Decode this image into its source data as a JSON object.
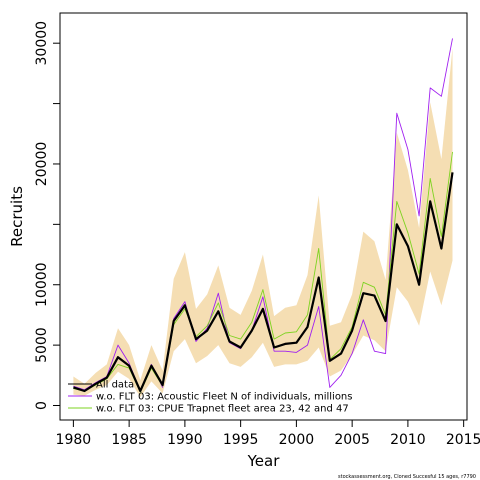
{
  "chart_data": {
    "type": "line",
    "xlabel": "Year",
    "ylabel": "Recruits",
    "xlim": [
      1978.8,
      2015.3
    ],
    "ylim": [
      -1200,
      32500
    ],
    "x_ticks": [
      1980,
      1985,
      1990,
      1995,
      2000,
      2005,
      2010,
      2015
    ],
    "y_ticks": [
      0,
      5000,
      10000,
      15000,
      20000,
      25000,
      30000
    ],
    "y_tick_labels": [
      "0",
      "5000",
      "10000",
      "",
      "20000",
      "",
      "30000"
    ],
    "grid": false,
    "legend_position": "bottom-left",
    "x": [
      1980,
      1981,
      1982,
      1983,
      1984,
      1985,
      1986,
      1987,
      1988,
      1989,
      1990,
      1991,
      1992,
      1993,
      1994,
      1995,
      1996,
      1997,
      1998,
      1999,
      2000,
      2001,
      2002,
      2003,
      2004,
      2005,
      2006,
      2007,
      2008,
      2009,
      2010,
      2011,
      2012,
      2013,
      2014
    ],
    "series": [
      {
        "name": "All data",
        "color": "#000000",
        "values": [
          1500,
          1200,
          1800,
          2300,
          4000,
          3300,
          1200,
          3300,
          1700,
          7000,
          8300,
          5500,
          6200,
          7800,
          5300,
          4800,
          6200,
          8000,
          4800,
          5100,
          5200,
          6500,
          10600,
          3700,
          4300,
          6200,
          9300,
          9100,
          7000,
          15000,
          13200,
          10000,
          16900,
          13000,
          19300
        ]
      },
      {
        "name": "w.o. FLT 03: Acoustic Fleet   N of individuals, millions",
        "color": "#a020f0",
        "values": [
          1600,
          1300,
          1900,
          2400,
          5000,
          3500,
          1200,
          3400,
          1500,
          7200,
          8600,
          5300,
          6400,
          9300,
          5200,
          4700,
          6200,
          9000,
          4500,
          4500,
          4400,
          5000,
          8200,
          1500,
          2500,
          4300,
          7100,
          4500,
          4300,
          24200,
          21200,
          15700,
          26300,
          25600,
          30400
        ]
      },
      {
        "name": "w.o. FLT 03: CPUE Trapnet fleet area 23, 42 and 47",
        "color": "#7ed321",
        "values": [
          1400,
          1200,
          1700,
          2200,
          3400,
          3100,
          1100,
          3100,
          1600,
          6700,
          8000,
          5700,
          6600,
          8500,
          5800,
          5500,
          6900,
          9600,
          5500,
          6000,
          6100,
          7500,
          13000,
          3800,
          4700,
          6500,
          10200,
          9800,
          7500,
          16900,
          14300,
          10900,
          18800,
          14000,
          21000
        ]
      }
    ],
    "confidence_band": {
      "color": "#f5deb3",
      "lower": [
        900,
        800,
        1300,
        1700,
        2800,
        2200,
        700,
        2000,
        1000,
        4500,
        5500,
        3500,
        4100,
        5000,
        3500,
        3200,
        4000,
        5200,
        3200,
        3400,
        3400,
        3700,
        4800,
        2400,
        2900,
        4200,
        5800,
        5400,
        4500,
        9800,
        8600,
        6600,
        11100,
        8300,
        12000
      ],
      "upper": [
        2400,
        1800,
        2700,
        3400,
        6400,
        5000,
        2100,
        5000,
        2900,
        10500,
        12700,
        8000,
        9200,
        11600,
        8100,
        7500,
        9500,
        12500,
        7400,
        8100,
        8300,
        10800,
        17400,
        6600,
        6900,
        9200,
        14400,
        13600,
        10400,
        22600,
        19500,
        14700,
        25100,
        20400,
        29600
      ]
    },
    "footer_note": "stockassessment.org, Cloned Succesful 15 ages, r7790"
  }
}
